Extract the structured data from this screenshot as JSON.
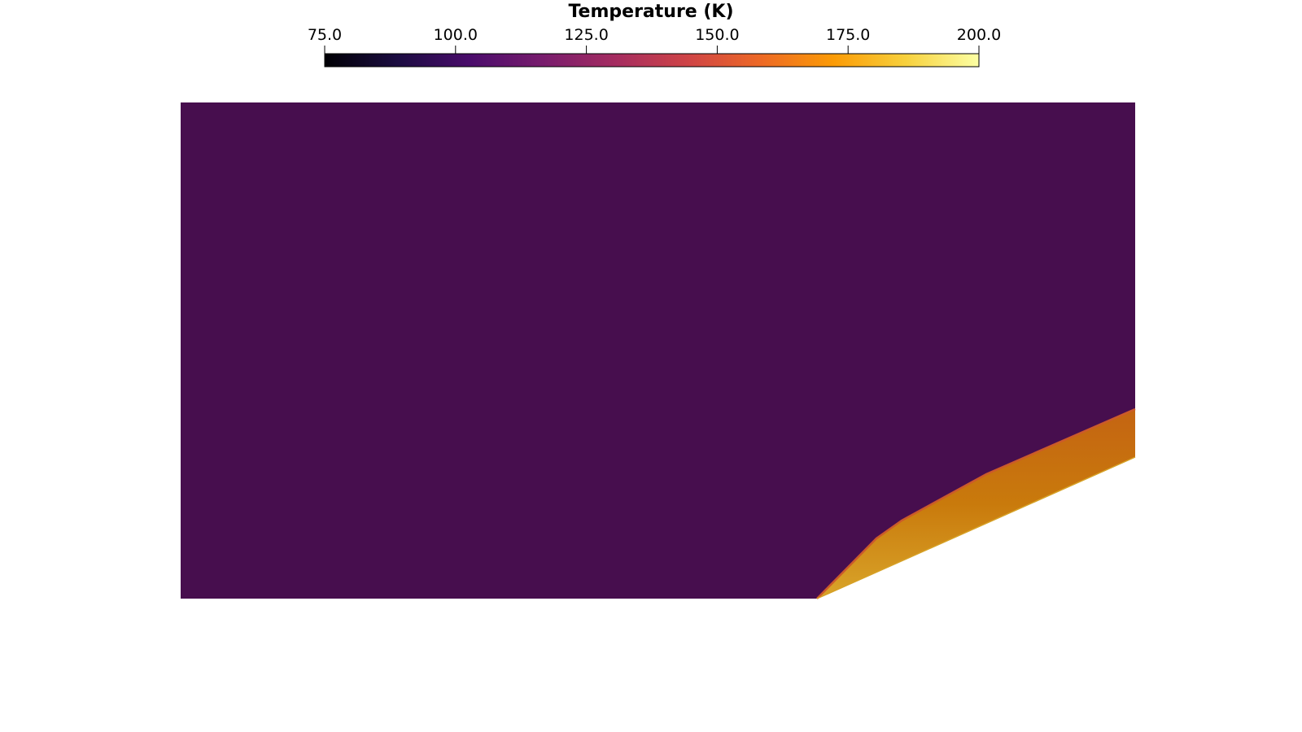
{
  "colorbar": {
    "title": "Temperature (K)",
    "range": [
      75.0,
      200.0
    ],
    "ticks": [
      {
        "value": 75.0,
        "label": "75.0"
      },
      {
        "value": 100.0,
        "label": "100.0"
      },
      {
        "value": 125.0,
        "label": "125.0"
      },
      {
        "value": 150.0,
        "label": "150.0"
      },
      {
        "value": 175.0,
        "label": "175.0"
      },
      {
        "value": 200.0,
        "label": "200.0"
      }
    ],
    "colormap": "inferno",
    "colormap_stops": [
      "#000004",
      "#1b0c41",
      "#4a0c6b",
      "#781c6d",
      "#a52c60",
      "#cf4446",
      "#ed6925",
      "#fb9b06",
      "#f7d13d",
      "#fcffa4"
    ]
  },
  "field": {
    "freestream_color": "#470e4e",
    "shock_layer_color": "#c9800c",
    "shock_edge_color": "#cc5a2a",
    "wall_color": "#d6a126"
  }
}
